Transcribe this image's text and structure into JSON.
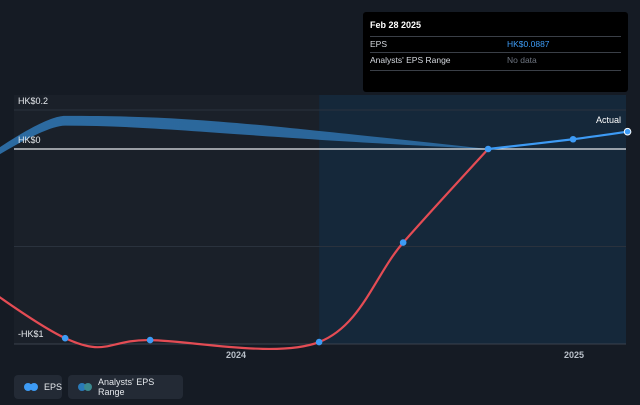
{
  "tooltip": {
    "date": "Feb 28 2025",
    "rows": [
      {
        "label": "EPS",
        "value": "HK$0.0887"
      },
      {
        "label": "Analysts' EPS Range",
        "value": "No data"
      }
    ]
  },
  "legend": {
    "eps_label": "EPS",
    "range_label": "Analysts' EPS Range"
  },
  "colors": {
    "background": "#151b24",
    "past_shade": "#1a2029",
    "forecast_shade": "#15283a",
    "eps_actual": "#3d9bf5",
    "eps_past": "#e44c54",
    "range_band": "#2d6fa8"
  },
  "chart_data": {
    "type": "line",
    "ylabel_ticks": [
      "HK$0.2",
      "HK$0",
      "-HK$1"
    ],
    "y_ticks": [
      0.2,
      0,
      -1
    ],
    "x_ticks": [
      {
        "label": "2024",
        "x": "2024-01-01"
      },
      {
        "label": "2025",
        "x": "2025-01-01"
      }
    ],
    "series": [
      {
        "name": "EPS",
        "points": [
          {
            "x": "2022-12-31",
            "y": -0.38
          },
          {
            "x": "2023-06-30",
            "y": -0.97
          },
          {
            "x": "2023-09-30",
            "y": -0.98
          },
          {
            "x": "2024-03-31",
            "y": -0.99
          },
          {
            "x": "2024-06-30",
            "y": -0.48
          },
          {
            "x": "2024-09-30",
            "y": 0.0
          },
          {
            "x": "2024-12-31",
            "y": 0.05
          },
          {
            "x": "2025-02-28",
            "y": 0.0887
          }
        ]
      },
      {
        "name": "Analysts' EPS Range",
        "band": [
          {
            "x": "2022-12-31",
            "low": -0.38,
            "high": -0.38
          },
          {
            "x": "2023-06-30",
            "low": 0.12,
            "high": 0.17
          },
          {
            "x": "2024-01-01",
            "low": 0.06,
            "high": 0.14
          },
          {
            "x": "2024-09-30",
            "low": 0.0,
            "high": 0.0
          }
        ]
      }
    ],
    "annotation": "Actual"
  }
}
